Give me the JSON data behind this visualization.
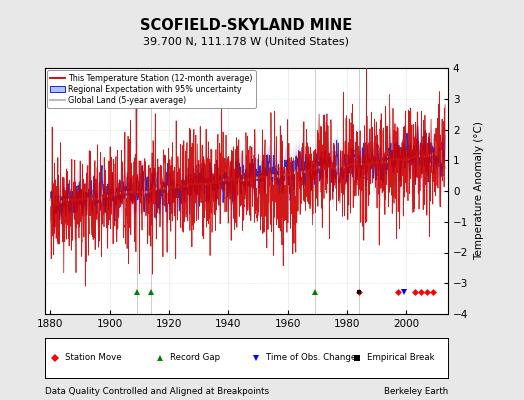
{
  "title": "SCOFIELD-SKYLAND MINE",
  "subtitle": "39.700 N, 111.178 W (United States)",
  "ylabel": "Temperature Anomaly (°C)",
  "xlabel_left": "Data Quality Controlled and Aligned at Breakpoints",
  "xlabel_right": "Berkeley Earth",
  "xlim": [
    1878,
    2014
  ],
  "ylim": [
    -4,
    4
  ],
  "yticks": [
    -4,
    -3,
    -2,
    -1,
    0,
    1,
    2,
    3,
    4
  ],
  "xticks": [
    1880,
    1900,
    1920,
    1940,
    1960,
    1980,
    2000
  ],
  "background_color": "#e8e8e8",
  "plot_bg_color": "#ffffff",
  "seed": 42,
  "start_year": 1880,
  "end_year": 2013,
  "station_moves": [
    1984,
    1997,
    2003,
    2005,
    2007,
    2009
  ],
  "record_gaps": [
    1909,
    1914,
    1969
  ],
  "time_obs_changes": [
    1999
  ],
  "empirical_breaks": [
    1984
  ],
  "legend_entries": [
    "This Temperature Station (12-month average)",
    "Regional Expectation with 95% uncertainty",
    "Global Land (5-year average)"
  ],
  "uncertainty_color": "#aac4ff",
  "regional_line_color": "#2222cc",
  "station_color": "#cc0000",
  "global_color": "#bbbbbb",
  "marker_y": -3.3,
  "vline_color": "#888888",
  "vline_alpha": 0.6
}
